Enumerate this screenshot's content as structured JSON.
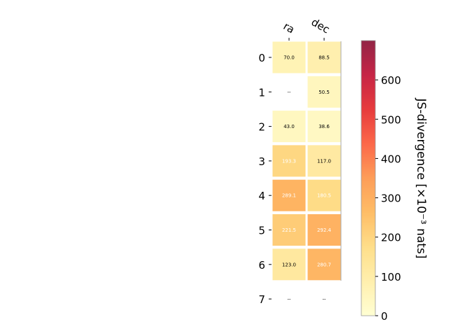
{
  "chart_data": {
    "type": "heatmap",
    "columns": [
      "ra",
      "dec"
    ],
    "rows": [
      "0",
      "1",
      "2",
      "3",
      "4",
      "5",
      "6",
      "7"
    ],
    "values": [
      [
        70.0,
        88.5
      ],
      [
        null,
        50.5
      ],
      [
        43.0,
        38.6
      ],
      [
        193.3,
        117.0
      ],
      [
        289.1,
        180.5
      ],
      [
        221.5,
        292.4
      ],
      [
        123.0,
        280.7
      ],
      [
        null,
        null
      ]
    ],
    "cell_labels": [
      [
        "70.0",
        "88.5"
      ],
      [
        "--",
        "50.5"
      ],
      [
        "43.0",
        "38.6"
      ],
      [
        "193.3",
        "117.0"
      ],
      [
        "289.1",
        "180.5"
      ],
      [
        "221.5",
        "292.4"
      ],
      [
        "123.0",
        "280.7"
      ],
      [
        "--",
        "--"
      ]
    ],
    "colorbar": {
      "label": "JS-divergence [×10⁻³ nats]",
      "vmin": 0,
      "vmax": 700,
      "ticks": [
        "0",
        "100",
        "200",
        "300",
        "400",
        "500",
        "600"
      ],
      "colormap": "YlOrRd"
    }
  }
}
